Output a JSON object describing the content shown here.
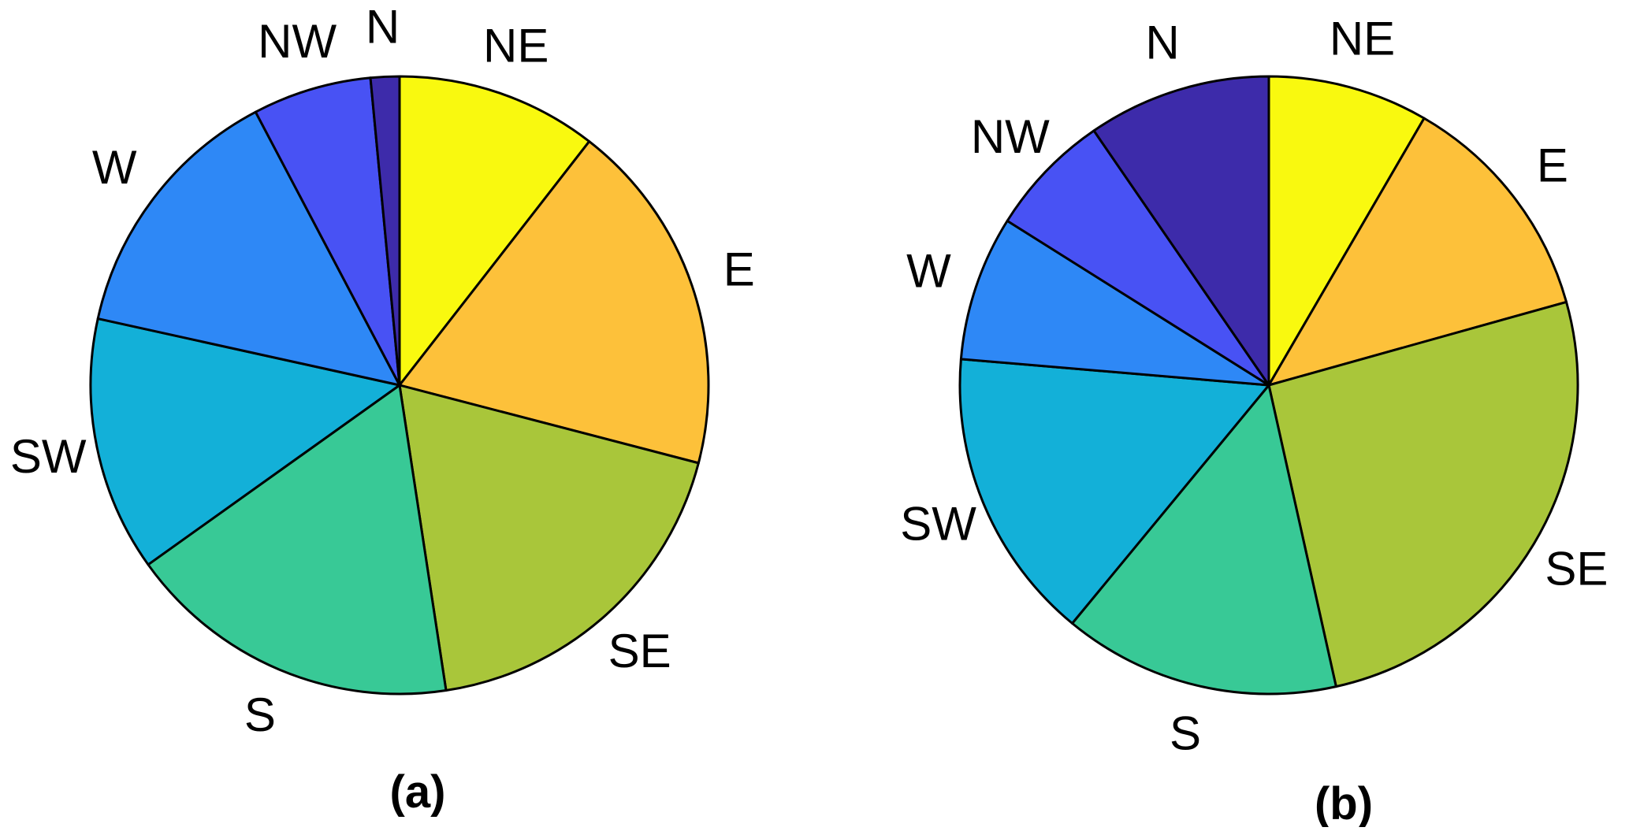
{
  "chart_data": [
    {
      "type": "pie",
      "panel_label": "(a)",
      "start_angle_deg": 0,
      "direction": "clockwise",
      "labels": [
        "NE",
        "E",
        "SE",
        "S",
        "SW",
        "W",
        "NW",
        "N"
      ],
      "values": [
        10.5,
        18.5,
        18.5,
        17.5,
        13.3,
        13.8,
        6.2,
        1.5
      ],
      "colors": [
        "#F9F90F",
        "#FDC13A",
        "#A9C63A",
        "#38C996",
        "#13B0D8",
        "#2E88F6",
        "#4852F4",
        "#3D2BAA"
      ]
    },
    {
      "type": "pie",
      "panel_label": "(b)",
      "start_angle_deg": 0,
      "direction": "clockwise",
      "labels": [
        "NE",
        "E",
        "SE",
        "S",
        "SW",
        "W",
        "NW",
        "N"
      ],
      "values": [
        8.4,
        12.3,
        25.9,
        14.5,
        15.4,
        7.6,
        6.5,
        9.6
      ],
      "colors": [
        "#F9F90F",
        "#FDC13A",
        "#A9C63A",
        "#38C996",
        "#13B0D8",
        "#2E88F6",
        "#4852F4",
        "#3D2BAA"
      ]
    }
  ]
}
